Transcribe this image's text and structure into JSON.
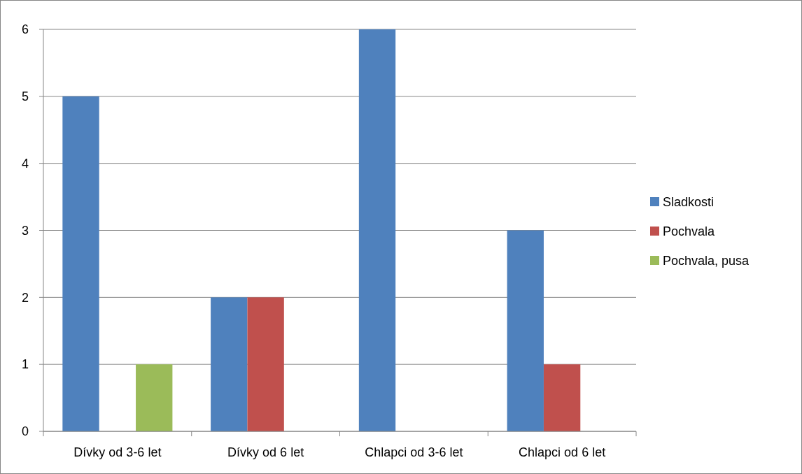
{
  "chart_data": {
    "type": "bar",
    "categories": [
      "Dívky od 3-6 let",
      "Dívky od 6 let",
      "Chlapci od 3-6 let",
      "Chlapci od 6 let"
    ],
    "series": [
      {
        "name": "Sladkosti",
        "color": "#4f81bd",
        "values": [
          5,
          2,
          6,
          3
        ]
      },
      {
        "name": "Pochvala",
        "color": "#c0504d",
        "values": [
          0,
          2,
          0,
          1
        ]
      },
      {
        "name": "Pochvala, pusa",
        "color": "#9bbb59",
        "values": [
          1,
          0,
          0,
          0
        ]
      }
    ],
    "ylim": [
      0,
      6
    ],
    "yticks": [
      0,
      1,
      2,
      3,
      4,
      5,
      6
    ],
    "grid": "y",
    "legend": "right"
  }
}
